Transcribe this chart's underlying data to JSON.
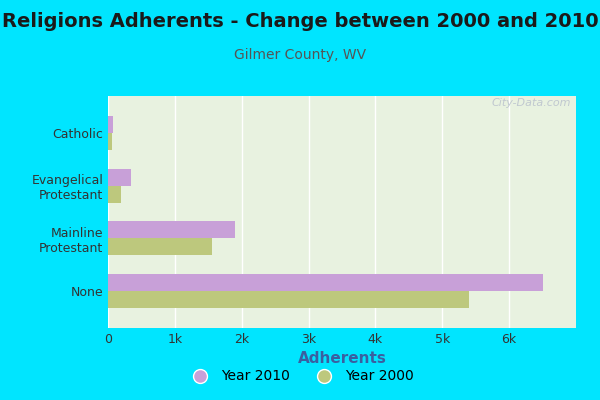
{
  "title": "Religions Adherents - Change between 2000 and 2010",
  "subtitle": "Gilmer County, WV",
  "xlabel": "Adherents",
  "categories": [
    "None",
    "Mainline\nProtestant",
    "Evangelical\nProtestant",
    "Catholic"
  ],
  "year2010": [
    6500,
    1900,
    350,
    70
  ],
  "year2000": [
    5400,
    1550,
    190,
    55
  ],
  "color2010": "#c8a0d8",
  "color2000": "#bdc87d",
  "background_color": "#00e5ff",
  "plot_bg_top": "#e8f2e0",
  "plot_bg_bottom": "#f5faf0",
  "title_fontsize": 14,
  "subtitle_fontsize": 10,
  "xlabel_fontsize": 11,
  "tick_fontsize": 9,
  "legend_fontsize": 10,
  "bar_height": 0.32,
  "xlim": [
    0,
    7000
  ],
  "xticks": [
    0,
    1000,
    2000,
    3000,
    4000,
    5000,
    6000
  ],
  "xtick_labels": [
    "0",
    "1k",
    "2k",
    "3k",
    "4k",
    "5k",
    "6k"
  ],
  "xlabel_color": "#3a5fa0",
  "subtitle_color": "#555555",
  "title_color": "#1a1a1a",
  "tick_color": "#333333"
}
